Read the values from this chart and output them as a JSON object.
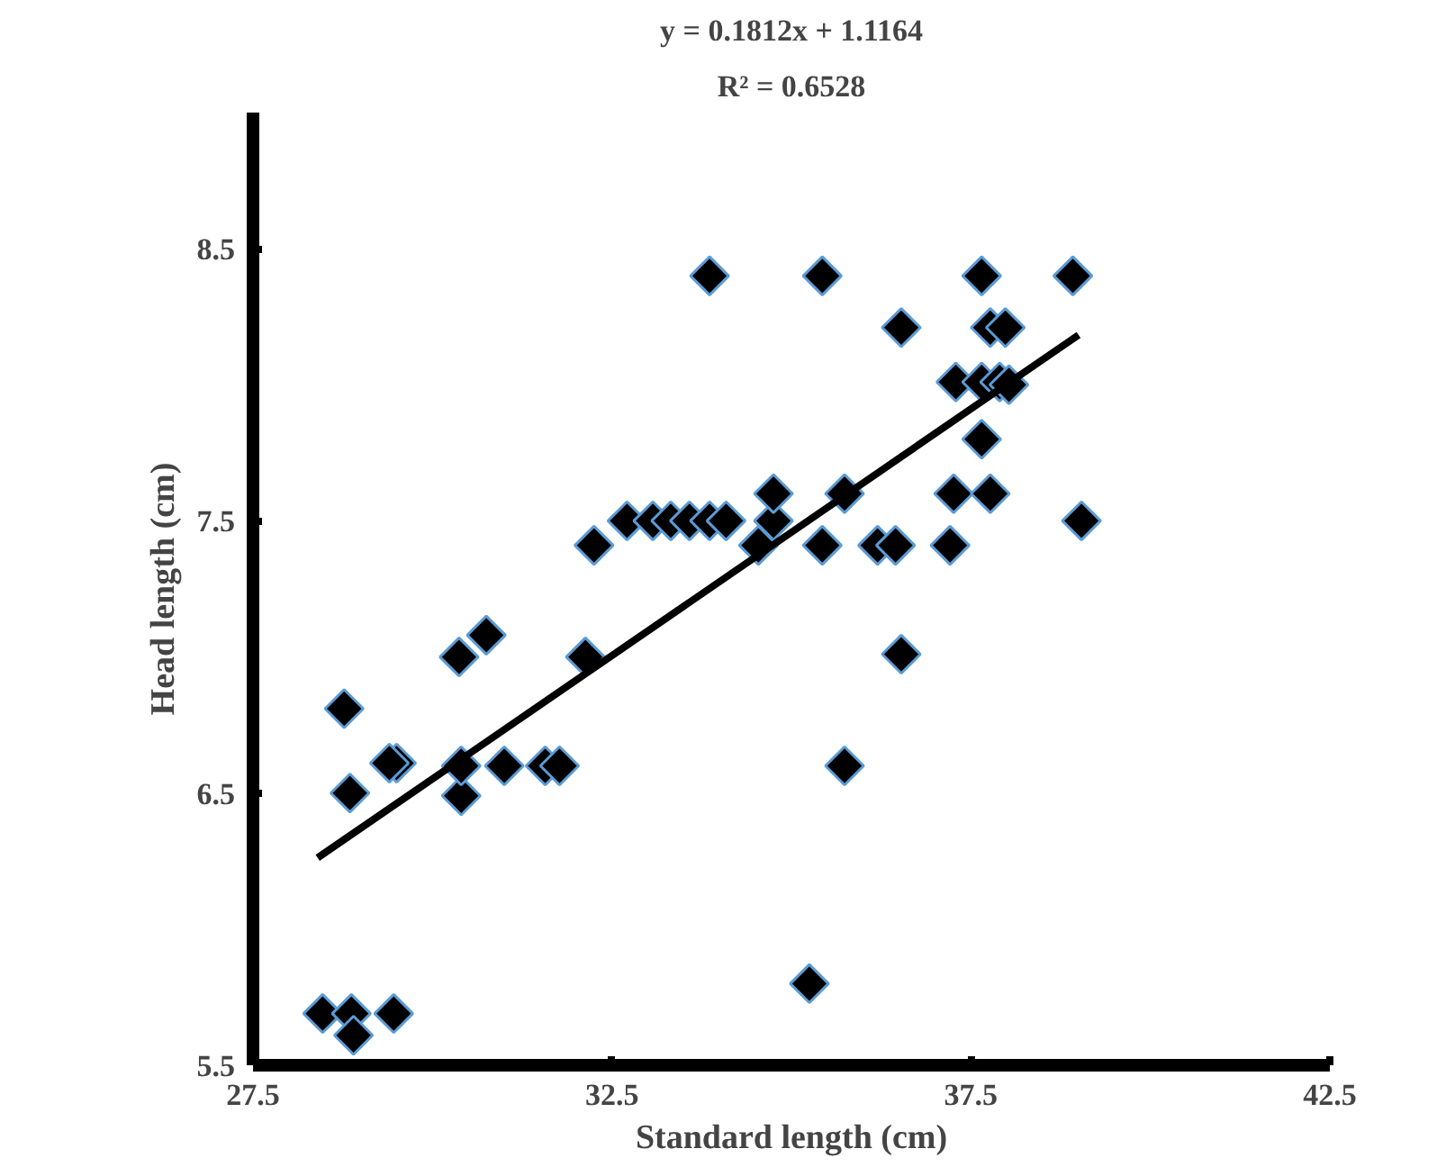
{
  "chart_data": {
    "type": "scatter",
    "xlabel": "Standard length (cm)",
    "ylabel": "Head length (cm)",
    "annotations": [
      "y = 0.1812x + 1.1164",
      "R² = 0.6528"
    ],
    "xlim": [
      27.5,
      42.5
    ],
    "ylim": [
      5.5,
      9.0
    ],
    "xticks": [
      27.5,
      32.5,
      37.5,
      42.5
    ],
    "yticks": [
      5.5,
      6.5,
      7.5,
      8.5
    ],
    "grid": false,
    "series": [
      {
        "marker": "diamond",
        "color": "#000000",
        "x": [
          28.47,
          28.87,
          28.9,
          29.46,
          28.77,
          28.85,
          29.5,
          29.4,
          30.37,
          30.75,
          30.4,
          30.4,
          31.0,
          31.57,
          31.77,
          32.13,
          32.25,
          32.71,
          33.07,
          33.32,
          33.58,
          33.86,
          34.09,
          34.75,
          33.86,
          35.43,
          37.65,
          38.92,
          36.53,
          37.77,
          37.98,
          37.29,
          37.65,
          37.9,
          38.03,
          37.65,
          37.26,
          37.77,
          34.75,
          35.74,
          39.04,
          34.54,
          35.43,
          36.2,
          36.45,
          37.21,
          36.53,
          35.74,
          35.25
        ],
        "values": [
          5.69,
          5.69,
          5.61,
          5.69,
          6.81,
          6.5,
          6.61,
          6.61,
          7.0,
          7.08,
          6.49,
          6.6,
          6.6,
          6.6,
          6.6,
          7.0,
          7.41,
          7.5,
          7.5,
          7.5,
          7.5,
          7.5,
          7.5,
          7.5,
          8.4,
          8.4,
          8.4,
          8.4,
          8.21,
          8.21,
          8.21,
          8.01,
          8.01,
          8.01,
          8.0,
          7.8,
          7.6,
          7.6,
          7.6,
          7.6,
          7.5,
          7.41,
          7.41,
          7.41,
          7.41,
          7.41,
          7.01,
          6.6,
          5.8
        ]
      },
      {
        "type": "line",
        "color": "#000000",
        "x": [
          28.4,
          39.0
        ],
        "values": [
          6.262,
          8.183
        ]
      }
    ]
  }
}
